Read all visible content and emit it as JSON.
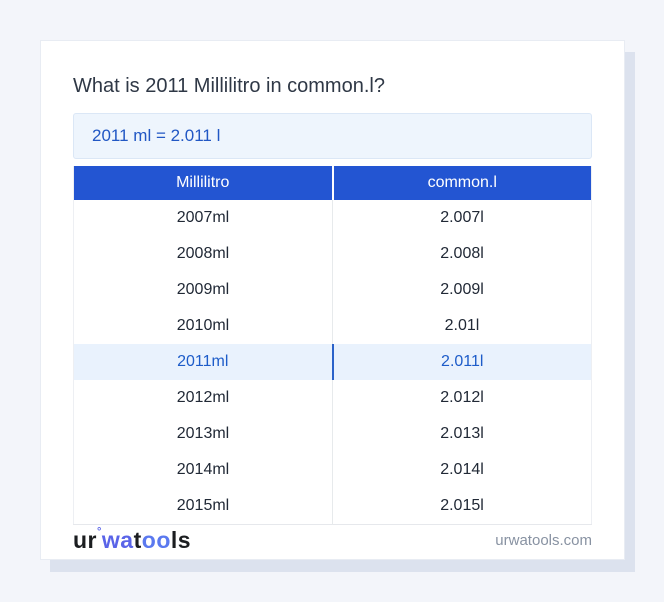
{
  "page": {
    "title": "What is 2011 Millilitro in common.l?",
    "formula": "2011 ml = 2.011 l"
  },
  "table": {
    "headers": [
      "Millilitro",
      "common.l"
    ],
    "rows": [
      [
        "2007ml",
        "2.007l"
      ],
      [
        "2008ml",
        "2.008l"
      ],
      [
        "2009ml",
        "2.009l"
      ],
      [
        "2010ml",
        "2.01l"
      ],
      [
        "2011ml",
        "2.011l"
      ],
      [
        "2012ml",
        "2.012l"
      ],
      [
        "2013ml",
        "2.013l"
      ],
      [
        "2014ml",
        "2.014l"
      ],
      [
        "2015ml",
        "2.015l"
      ]
    ],
    "highlighted_row_index": 4
  },
  "footer": {
    "logo_segments": [
      {
        "text": "ur",
        "color": "#1b1d20"
      },
      {
        "text": "°",
        "color": "#5c66e8",
        "sup": true
      },
      {
        "text": "wa",
        "color": "#5a64e8"
      },
      {
        "text": "t",
        "color": "#1b1d20"
      },
      {
        "text": "oo",
        "color": "#5b79ef"
      },
      {
        "text": "ls",
        "color": "#1b1d20"
      }
    ],
    "site": "urwatools.com"
  },
  "colors": {
    "page_background": "#f3f5fa",
    "card_background": "#ffffff",
    "card_shadow": "#dce2ee",
    "table_header_bg": "#2355d2",
    "table_header_text": "#ffffff",
    "highlight_row_bg": "#e9f2fd",
    "highlight_row_text": "#1d5cc9",
    "formula_box_bg": "#eef5fd",
    "formula_box_border": "#dbe7f6",
    "formula_text": "#2157c4",
    "title_text": "#2f3846",
    "row_text": "#212936",
    "site_url_text": "#8892a2"
  }
}
